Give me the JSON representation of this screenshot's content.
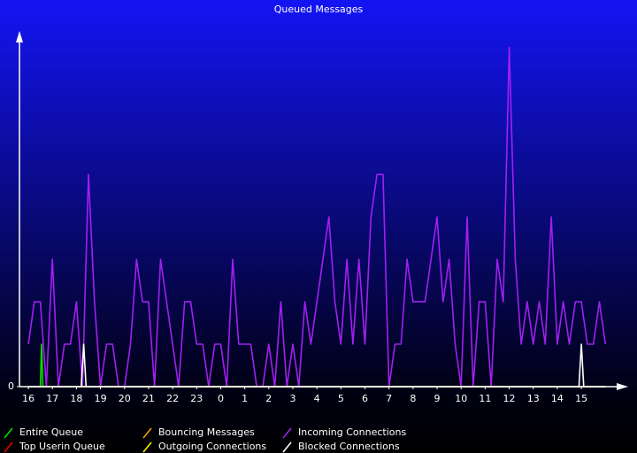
{
  "chart_data": {
    "type": "line",
    "title": "Queued Messages",
    "xlim": [
      -0.37,
      24.8
    ],
    "ylim": [
      0,
      8.3
    ],
    "yticks": [
      0
    ],
    "xticks": [
      {
        "value": 0,
        "label": "16"
      },
      {
        "value": 1,
        "label": "17"
      },
      {
        "value": 2,
        "label": "18"
      },
      {
        "value": 3,
        "label": "19"
      },
      {
        "value": 4,
        "label": "20"
      },
      {
        "value": 5,
        "label": "21"
      },
      {
        "value": 6,
        "label": "22"
      },
      {
        "value": 7,
        "label": "23"
      },
      {
        "value": 8,
        "label": "0"
      },
      {
        "value": 9,
        "label": "1"
      },
      {
        "value": 10,
        "label": "2"
      },
      {
        "value": 11,
        "label": "3"
      },
      {
        "value": 12,
        "label": "4"
      },
      {
        "value": 13,
        "label": "5"
      },
      {
        "value": 14,
        "label": "6"
      },
      {
        "value": 15,
        "label": "7"
      },
      {
        "value": 16,
        "label": "8"
      },
      {
        "value": 17,
        "label": "9"
      },
      {
        "value": 18,
        "label": "10"
      },
      {
        "value": 19,
        "label": "11"
      },
      {
        "value": 20,
        "label": "12"
      },
      {
        "value": 21,
        "label": "13"
      },
      {
        "value": 22,
        "label": "14"
      },
      {
        "value": 23,
        "label": "15"
      }
    ],
    "series": [
      {
        "name": "Incoming Connections",
        "color": "#a020f0",
        "x": [
          0,
          0.25,
          0.5,
          0.75,
          1,
          1.25,
          1.5,
          1.75,
          2,
          2.25,
          2.5,
          2.75,
          3,
          3.25,
          3.5,
          3.75,
          4,
          4.25,
          4.5,
          4.75,
          5,
          5.25,
          5.5,
          5.75,
          6,
          6.25,
          6.5,
          6.75,
          7,
          7.25,
          7.5,
          7.75,
          8,
          8.25,
          8.5,
          8.75,
          9,
          9.25,
          9.5,
          9.75,
          10,
          10.25,
          10.5,
          10.75,
          11,
          11.25,
          11.5,
          11.75,
          12,
          12.25,
          12.5,
          12.75,
          13,
          13.25,
          13.5,
          13.75,
          14,
          14.25,
          14.5,
          14.75,
          15,
          15.25,
          15.5,
          15.75,
          16,
          16.25,
          16.5,
          16.75,
          17,
          17.25,
          17.5,
          17.75,
          18,
          18.25,
          18.5,
          18.75,
          19,
          19.25,
          19.5,
          19.75,
          20,
          20.25,
          20.5,
          20.75,
          21,
          21.25,
          21.5,
          21.75,
          22,
          22.25,
          22.5,
          22.75,
          23,
          23.25,
          23.5,
          23.75,
          24
        ],
        "values": [
          1,
          2,
          2,
          0,
          3,
          0,
          1,
          1,
          2,
          0,
          5,
          2,
          0,
          1,
          1,
          0,
          0,
          1,
          3,
          2,
          2,
          0,
          3,
          2,
          1,
          0,
          2,
          2,
          1,
          1,
          0,
          1,
          1,
          0,
          3,
          1,
          1,
          1,
          0,
          0,
          1,
          0,
          2,
          0,
          1,
          0,
          2,
          1,
          2,
          3,
          4,
          2,
          1,
          3,
          1,
          3,
          1,
          4,
          5,
          5,
          0,
          1,
          1,
          3,
          2,
          2,
          2,
          3,
          4,
          2,
          3,
          1,
          0,
          4,
          0,
          2,
          2,
          0,
          3,
          2,
          8,
          3,
          1,
          2,
          1,
          2,
          1,
          4,
          1,
          2,
          1,
          2,
          2,
          1,
          1,
          2,
          1
        ]
      },
      {
        "name": "Entire Queue",
        "color": "#00e000",
        "x": [
          0.5,
          0.55,
          0.6
        ],
        "values": [
          0,
          1,
          0
        ]
      },
      {
        "name": "Top Userin Queue",
        "color": "#e00000",
        "x": [
          0,
          24
        ],
        "values": [
          0,
          0
        ]
      },
      {
        "name": "Bouncing Messages",
        "color": "#f0a000",
        "x": [
          0,
          24
        ],
        "values": [
          0,
          0
        ]
      },
      {
        "name": "Outgoing Connections",
        "color": "#f0f000",
        "x": [
          0,
          24
        ],
        "values": [
          0,
          0
        ]
      },
      {
        "name": "Blocked Connections",
        "color": "#ffffff",
        "x": [
          0,
          2.2,
          2.3,
          2.4,
          22.9,
          23.0,
          23.1,
          24
        ],
        "values": [
          0,
          0,
          1,
          0,
          0,
          1,
          0,
          0
        ]
      }
    ]
  }
}
